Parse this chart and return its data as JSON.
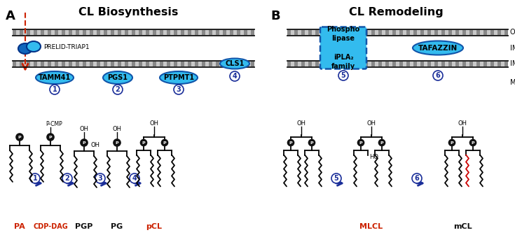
{
  "title_A": "CL Biosynthesis",
  "title_B": "CL Remodeling",
  "label_A": "A",
  "label_B": "B",
  "protein_fill_dark_blue": "#1166bb",
  "protein_fill_cyan": "#33bbee",
  "protein_outline": "#1155aa",
  "dashed_box_color": "#1155aa",
  "red_arrow_color": "#cc2200",
  "step_arrow_color": "#1a2e99",
  "red_chain_color": "#cc0000",
  "label_red": "#cc2200",
  "label_black": "#111111",
  "bg_color": "#ffffff",
  "prelid": "PRELID-TRIAP1",
  "proteins_B_rect_line1": "Phospho",
  "proteins_B_rect_line2": "lipase",
  "proteins_B_rect_line3": "iPLA₂",
  "proteins_B_rect_line4": "family",
  "proteins_B_oval": "TAFAZZIN"
}
